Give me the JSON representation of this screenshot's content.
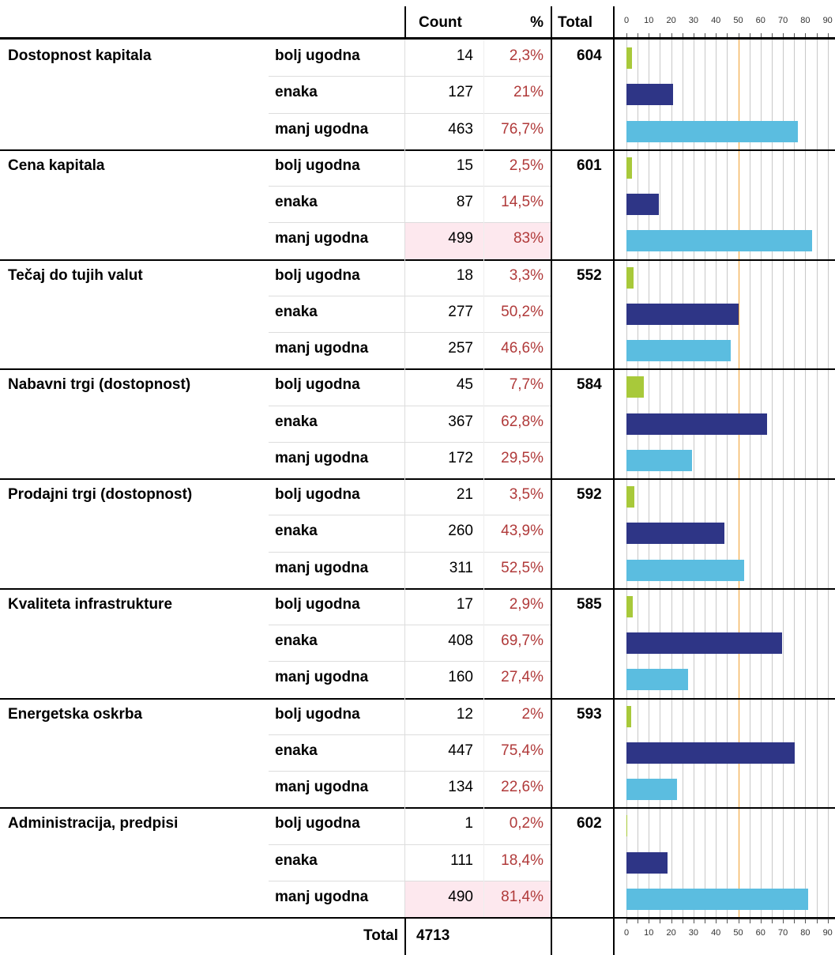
{
  "header": {
    "count": "Count",
    "percent": "%",
    "total": "Total"
  },
  "axis": {
    "xlim": [
      0,
      100
    ],
    "xticks": [
      0,
      10,
      20,
      30,
      40,
      50,
      60,
      70,
      80,
      90
    ],
    "minor_xticks": [
      5,
      15,
      25,
      35,
      45,
      55,
      65,
      75,
      85,
      95
    ],
    "reference": 50,
    "reference_color": "#f0a030",
    "grid_color": "#c8c8c8"
  },
  "row_colors": [
    "#a8c93a",
    "#2e3586",
    "#5bbde0"
  ],
  "groups": [
    {
      "name": "Dostopnost kapitala",
      "total": 604,
      "rows": [
        {
          "label": "bolj ugodna",
          "count": 14,
          "percent": 2.3,
          "percent_label": "2,3%"
        },
        {
          "label": "enaka",
          "count": 127,
          "percent": 21,
          "percent_label": "21%"
        },
        {
          "label": "manj ugodna",
          "count": 463,
          "percent": 76.7,
          "percent_label": "76,7%"
        }
      ]
    },
    {
      "name": "Cena kapitala",
      "total": 601,
      "rows": [
        {
          "label": "bolj ugodna",
          "count": 15,
          "percent": 2.5,
          "percent_label": "2,5%"
        },
        {
          "label": "enaka",
          "count": 87,
          "percent": 14.5,
          "percent_label": "14,5%"
        },
        {
          "label": "manj ugodna",
          "count": 499,
          "percent": 83,
          "percent_label": "83%",
          "highlight": true
        }
      ]
    },
    {
      "name": "Tečaj do tujih valut",
      "total": 552,
      "rows": [
        {
          "label": "bolj ugodna",
          "count": 18,
          "percent": 3.3,
          "percent_label": "3,3%"
        },
        {
          "label": "enaka",
          "count": 277,
          "percent": 50.2,
          "percent_label": "50,2%"
        },
        {
          "label": "manj ugodna",
          "count": 257,
          "percent": 46.6,
          "percent_label": "46,6%"
        }
      ]
    },
    {
      "name": "Nabavni trgi (dostopnost)",
      "total": 584,
      "rows": [
        {
          "label": "bolj ugodna",
          "count": 45,
          "percent": 7.7,
          "percent_label": "7,7%"
        },
        {
          "label": "enaka",
          "count": 367,
          "percent": 62.8,
          "percent_label": "62,8%"
        },
        {
          "label": "manj ugodna",
          "count": 172,
          "percent": 29.5,
          "percent_label": "29,5%"
        }
      ]
    },
    {
      "name": "Prodajni trgi (dostopnost)",
      "total": 592,
      "rows": [
        {
          "label": "bolj ugodna",
          "count": 21,
          "percent": 3.5,
          "percent_label": "3,5%"
        },
        {
          "label": "enaka",
          "count": 260,
          "percent": 43.9,
          "percent_label": "43,9%"
        },
        {
          "label": "manj ugodna",
          "count": 311,
          "percent": 52.5,
          "percent_label": "52,5%"
        }
      ]
    },
    {
      "name": "Kvaliteta infrastrukture",
      "total": 585,
      "rows": [
        {
          "label": "bolj ugodna",
          "count": 17,
          "percent": 2.9,
          "percent_label": "2,9%"
        },
        {
          "label": "enaka",
          "count": 408,
          "percent": 69.7,
          "percent_label": "69,7%"
        },
        {
          "label": "manj ugodna",
          "count": 160,
          "percent": 27.4,
          "percent_label": "27,4%"
        }
      ]
    },
    {
      "name": "Energetska oskrba",
      "total": 593,
      "rows": [
        {
          "label": "bolj ugodna",
          "count": 12,
          "percent": 2,
          "percent_label": "2%"
        },
        {
          "label": "enaka",
          "count": 447,
          "percent": 75.4,
          "percent_label": "75,4%"
        },
        {
          "label": "manj ugodna",
          "count": 134,
          "percent": 22.6,
          "percent_label": "22,6%"
        }
      ]
    },
    {
      "name": "Administracija, predpisi",
      "total": 602,
      "rows": [
        {
          "label": "bolj ugodna",
          "count": 1,
          "percent": 0.2,
          "percent_label": "0,2%"
        },
        {
          "label": "enaka",
          "count": 111,
          "percent": 18.4,
          "percent_label": "18,4%"
        },
        {
          "label": "manj ugodna",
          "count": 490,
          "percent": 81.4,
          "percent_label": "81,4%",
          "highlight": true
        }
      ]
    }
  ],
  "footer": {
    "label": "Total",
    "count": 4713
  }
}
